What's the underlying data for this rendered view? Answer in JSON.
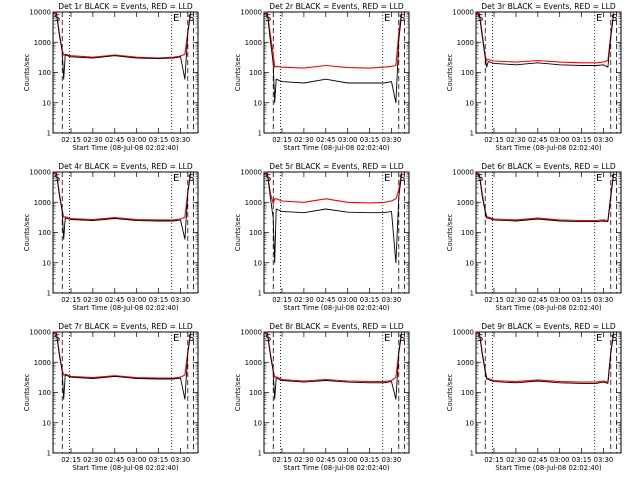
{
  "figure": {
    "xlabel": "Start Time (08-Jul-08 02:02:40)",
    "ylabel": "Counts/sec",
    "x_ticks": [
      "02:15",
      "02:30",
      "02:45",
      "03:00",
      "03:15",
      "03:30"
    ],
    "y_ticks": [
      "1",
      "10",
      "100",
      "1000",
      "10000"
    ],
    "markers": [
      "S",
      "E",
      "S"
    ],
    "colors": {
      "events": "#000000",
      "lld": "#ff0000"
    }
  },
  "chart_data": [
    {
      "type": "line",
      "title": "Det 1r BLACK = Events, RED = LLD",
      "xlabel": "Start Time (08-Jul-08 02:02:40)",
      "ylabel": "Counts/sec",
      "ylim": [
        1,
        10000
      ],
      "yscale": "log",
      "xlim": [
        "02:02:40",
        "03:42"
      ],
      "t": [
        "02:02:40",
        "02:05",
        "02:07",
        "02:09",
        "02:10",
        "02:11",
        "02:15",
        "02:30",
        "02:45",
        "03:00",
        "03:15",
        "03:25",
        "03:30",
        "03:33",
        "03:35",
        "03:37"
      ],
      "series": [
        {
          "name": "Events",
          "color": "#000000",
          "values": [
            9500,
            9000,
            1800,
            500,
            60,
            380,
            330,
            300,
            360,
            300,
            290,
            300,
            330,
            60,
            2000,
            9500
          ]
        },
        {
          "name": "LLD",
          "color": "#ff0000",
          "values": [
            10000,
            9500,
            2000,
            550,
            380,
            400,
            360,
            320,
            380,
            320,
            300,
            320,
            350,
            400,
            2200,
            10000
          ]
        }
      ]
    },
    {
      "type": "line",
      "title": "Det 2r BLACK = Events, RED = LLD",
      "xlabel": "Start Time (08-Jul-08 02:02:40)",
      "ylabel": "Counts/sec",
      "ylim": [
        1,
        10000
      ],
      "yscale": "log",
      "xlim": [
        "02:02:40",
        "03:42"
      ],
      "t": [
        "02:02:40",
        "02:05",
        "02:07",
        "02:09",
        "02:10",
        "02:11",
        "02:15",
        "02:30",
        "02:45",
        "03:00",
        "03:15",
        "03:25",
        "03:30",
        "03:33",
        "03:35",
        "03:37"
      ],
      "series": [
        {
          "name": "Events",
          "color": "#000000",
          "values": [
            9000,
            8500,
            1200,
            200,
            10,
            60,
            50,
            45,
            60,
            45,
            45,
            45,
            50,
            10,
            1200,
            9000
          ]
        },
        {
          "name": "LLD",
          "color": "#ff0000",
          "values": [
            10000,
            9500,
            1800,
            400,
            150,
            160,
            150,
            140,
            170,
            145,
            140,
            150,
            160,
            170,
            2000,
            10000
          ]
        }
      ]
    },
    {
      "type": "line",
      "title": "Det 3r BLACK = Events, RED = LLD",
      "xlabel": "Start Time (08-Jul-08 02:02:40)",
      "ylabel": "Counts/sec",
      "ylim": [
        1,
        10000
      ],
      "yscale": "log",
      "xlim": [
        "02:02:40",
        "03:42"
      ],
      "t": [
        "02:02:40",
        "02:05",
        "02:07",
        "02:09",
        "02:10",
        "02:11",
        "02:15",
        "02:30",
        "02:45",
        "03:00",
        "03:15",
        "03:25",
        "03:30",
        "03:33",
        "03:35",
        "03:37"
      ],
      "series": [
        {
          "name": "Events",
          "color": "#000000",
          "values": [
            9000,
            8000,
            1500,
            300,
            150,
            230,
            200,
            180,
            210,
            180,
            170,
            170,
            180,
            150,
            1500,
            8500
          ]
        },
        {
          "name": "LLD",
          "color": "#ff0000",
          "values": [
            9500,
            9000,
            1800,
            350,
            250,
            270,
            240,
            220,
            250,
            220,
            210,
            210,
            220,
            250,
            1800,
            9500
          ]
        }
      ]
    },
    {
      "type": "line",
      "title": "Det 4r BLACK = Events, RED = LLD",
      "xlabel": "Start Time (08-Jul-08 02:02:40)",
      "ylabel": "Counts/sec",
      "ylim": [
        1,
        10000
      ],
      "yscale": "log",
      "xlim": [
        "02:02:40",
        "03:42"
      ],
      "t": [
        "02:02:40",
        "02:05",
        "02:07",
        "02:09",
        "02:10",
        "02:11",
        "02:15",
        "02:30",
        "02:45",
        "03:00",
        "03:15",
        "03:25",
        "03:30",
        "03:33",
        "03:35",
        "03:37"
      ],
      "series": [
        {
          "name": "Events",
          "color": "#000000",
          "values": [
            9500,
            9000,
            1800,
            500,
            60,
            300,
            270,
            250,
            290,
            250,
            240,
            240,
            260,
            60,
            2000,
            9500
          ]
        },
        {
          "name": "LLD",
          "color": "#ff0000",
          "values": [
            10000,
            9500,
            2000,
            550,
            320,
            330,
            290,
            270,
            310,
            270,
            260,
            260,
            280,
            320,
            2200,
            10000
          ]
        }
      ]
    },
    {
      "type": "line",
      "title": "Det 5r BLACK = Events, RED = LLD",
      "xlabel": "Start Time (08-Jul-08 02:02:40)",
      "ylabel": "Counts/sec",
      "ylim": [
        1,
        10000
      ],
      "yscale": "log",
      "xlim": [
        "02:02:40",
        "03:42"
      ],
      "t": [
        "02:02:40",
        "02:05",
        "02:07",
        "02:09",
        "02:10",
        "02:11",
        "02:15",
        "02:30",
        "02:45",
        "03:00",
        "03:15",
        "03:25",
        "03:30",
        "03:33",
        "03:35",
        "03:37"
      ],
      "series": [
        {
          "name": "Events",
          "color": "#000000",
          "values": [
            9000,
            8500,
            1500,
            300,
            10,
            600,
            500,
            450,
            600,
            470,
            450,
            450,
            500,
            10,
            1500,
            9000
          ]
        },
        {
          "name": "LLD",
          "color": "#ff0000",
          "values": [
            10000,
            9500,
            2000,
            900,
            1300,
            1300,
            1100,
            1000,
            1300,
            1000,
            950,
            1000,
            1100,
            1300,
            2500,
            10000
          ]
        }
      ]
    },
    {
      "type": "line",
      "title": "Det 6r BLACK = Events, RED = LLD",
      "xlabel": "Start Time (08-Jul-08 02:02:40)",
      "ylabel": "Counts/sec",
      "ylim": [
        1,
        10000
      ],
      "yscale": "log",
      "xlim": [
        "02:02:40",
        "03:42"
      ],
      "t": [
        "02:02:40",
        "02:05",
        "02:07",
        "02:09",
        "02:10",
        "02:11",
        "02:15",
        "02:30",
        "02:45",
        "03:00",
        "03:15",
        "03:25",
        "03:30",
        "03:33",
        "03:35",
        "03:37"
      ],
      "series": [
        {
          "name": "Events",
          "color": "#000000",
          "values": [
            9000,
            8000,
            1500,
            500,
            300,
            300,
            260,
            240,
            280,
            240,
            230,
            230,
            240,
            230,
            1500,
            9000
          ]
        },
        {
          "name": "LLD",
          "color": "#ff0000",
          "values": [
            9500,
            8500,
            1800,
            550,
            330,
            320,
            280,
            260,
            300,
            260,
            250,
            250,
            260,
            250,
            1800,
            9500
          ]
        }
      ]
    },
    {
      "type": "line",
      "title": "Det 7r BLACK = Events, RED = LLD",
      "xlabel": "Start Time (08-Jul-08 02:02:40)",
      "ylabel": "Counts/sec",
      "ylim": [
        1,
        10000
      ],
      "yscale": "log",
      "xlim": [
        "02:02:40",
        "03:42"
      ],
      "t": [
        "02:02:40",
        "02:05",
        "02:07",
        "02:09",
        "02:10",
        "02:11",
        "02:15",
        "02:30",
        "02:45",
        "03:00",
        "03:15",
        "03:25",
        "03:30",
        "03:33",
        "03:35",
        "03:37"
      ],
      "series": [
        {
          "name": "Events",
          "color": "#000000",
          "values": [
            9500,
            9000,
            1800,
            500,
            60,
            380,
            320,
            290,
            340,
            290,
            280,
            280,
            300,
            60,
            2000,
            9500
          ]
        },
        {
          "name": "LLD",
          "color": "#ff0000",
          "values": [
            10000,
            9500,
            2000,
            550,
            380,
            400,
            340,
            310,
            360,
            310,
            300,
            300,
            320,
            380,
            2200,
            10000
          ]
        }
      ]
    },
    {
      "type": "line",
      "title": "Det 8r BLACK = Events, RED = LLD",
      "xlabel": "Start Time (08-Jul-08 02:02:40)",
      "ylabel": "Counts/sec",
      "ylim": [
        1,
        10000
      ],
      "yscale": "log",
      "xlim": [
        "02:02:40",
        "03:42"
      ],
      "t": [
        "02:02:40",
        "02:05",
        "02:07",
        "02:09",
        "02:10",
        "02:11",
        "02:15",
        "02:30",
        "02:45",
        "03:00",
        "03:15",
        "03:25",
        "03:30",
        "03:33",
        "03:35",
        "03:37"
      ],
      "series": [
        {
          "name": "Events",
          "color": "#000000",
          "values": [
            9500,
            9000,
            1800,
            500,
            60,
            300,
            250,
            220,
            250,
            220,
            210,
            210,
            230,
            60,
            2000,
            9500
          ]
        },
        {
          "name": "LLD",
          "color": "#ff0000",
          "values": [
            10000,
            9500,
            2000,
            550,
            320,
            330,
            270,
            240,
            270,
            240,
            230,
            230,
            250,
            320,
            2200,
            10000
          ]
        }
      ]
    },
    {
      "type": "line",
      "title": "Det 9r BLACK = Events, RED = LLD",
      "xlabel": "Start Time (08-Jul-08 02:02:40)",
      "ylabel": "Counts/sec",
      "ylim": [
        1,
        10000
      ],
      "yscale": "log",
      "xlim": [
        "02:02:40",
        "03:42"
      ],
      "t": [
        "02:02:40",
        "02:05",
        "02:07",
        "02:09",
        "02:10",
        "02:11",
        "02:15",
        "02:30",
        "02:45",
        "03:00",
        "03:15",
        "03:25",
        "03:30",
        "03:33",
        "03:35",
        "03:37"
      ],
      "series": [
        {
          "name": "Events",
          "color": "#000000",
          "values": [
            9500,
            9000,
            1800,
            500,
            280,
            270,
            230,
            210,
            240,
            210,
            200,
            200,
            220,
            200,
            2000,
            9500
          ]
        },
        {
          "name": "LLD",
          "color": "#ff0000",
          "values": [
            10000,
            9500,
            2000,
            550,
            300,
            290,
            250,
            230,
            260,
            230,
            220,
            220,
            240,
            220,
            2200,
            10000
          ]
        }
      ]
    }
  ]
}
